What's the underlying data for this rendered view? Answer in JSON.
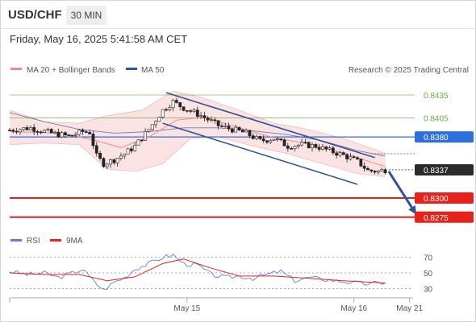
{
  "header": {
    "symbol": "USD/CHF",
    "timeframe": "30 MIN",
    "datetime": "Friday, May 16, 2025 5:41:58 AM CET"
  },
  "colors": {
    "green_level": "#69a94a",
    "blue_level": "#2e6fe0",
    "red_level": "#e8211b",
    "price_box": "#2b2b2b",
    "ma20": "#f08a8a",
    "bollinger_fill": "#fbdada",
    "ma50": "#2f5597",
    "channel": "#2f5597",
    "arrow": "#2f5597",
    "rsi": "#5b7fe0",
    "rsi_ma": "#e8211b"
  },
  "chart_data": [
    {
      "type": "candlestick",
      "title": "",
      "legend": [
        {
          "name": "MA 20 + Bollinger Bands",
          "color": "#f08a8a"
        },
        {
          "name": "MA 50",
          "color": "#2f5597"
        }
      ],
      "legend_placement": "top-left",
      "credit": "Research © 2025 Trading Central",
      "y_range": [
        0.826,
        0.8455
      ],
      "x_labels": [
        {
          "label": "May 15",
          "index": 51
        },
        {
          "label": "May 16",
          "index": 99
        },
        {
          "label": "May 21",
          "index": 115
        }
      ],
      "x_count": 117,
      "levels": [
        {
          "value": 0.8435,
          "label": "0.8435",
          "style": "green",
          "boxed": false
        },
        {
          "value": 0.8405,
          "label": "0.8405",
          "style": "green",
          "boxed": false
        },
        {
          "value": 0.838,
          "label": "0.8380",
          "style": "blue",
          "boxed": true
        },
        {
          "value": 0.8337,
          "label": "0.8337",
          "style": "current",
          "boxed": true
        },
        {
          "value": 0.83,
          "label": "0.8300",
          "style": "red",
          "boxed": true
        },
        {
          "value": 0.8275,
          "label": "0.8275",
          "style": "red",
          "boxed": true
        }
      ],
      "keypoints": [
        {
          "i": 0,
          "y": 0.8389
        },
        {
          "i": 6,
          "y": 0.8392
        },
        {
          "i": 12,
          "y": 0.8385
        },
        {
          "i": 17,
          "y": 0.8381
        },
        {
          "i": 21,
          "y": 0.8387
        },
        {
          "i": 23,
          "y": 0.8386
        },
        {
          "i": 25,
          "y": 0.8355
        },
        {
          "i": 27,
          "y": 0.8345
        },
        {
          "i": 30,
          "y": 0.835
        },
        {
          "i": 33,
          "y": 0.8358
        },
        {
          "i": 36,
          "y": 0.8368
        },
        {
          "i": 40,
          "y": 0.839
        },
        {
          "i": 44,
          "y": 0.8415
        },
        {
          "i": 47,
          "y": 0.8426
        },
        {
          "i": 50,
          "y": 0.8418
        },
        {
          "i": 55,
          "y": 0.8408
        },
        {
          "i": 60,
          "y": 0.8395
        },
        {
          "i": 64,
          "y": 0.839
        },
        {
          "i": 68,
          "y": 0.8385
        },
        {
          "i": 72,
          "y": 0.8375
        },
        {
          "i": 76,
          "y": 0.8378
        },
        {
          "i": 80,
          "y": 0.8368
        },
        {
          "i": 84,
          "y": 0.837
        },
        {
          "i": 88,
          "y": 0.8368
        },
        {
          "i": 92,
          "y": 0.8362
        },
        {
          "i": 96,
          "y": 0.8356
        },
        {
          "i": 100,
          "y": 0.8348
        },
        {
          "i": 103,
          "y": 0.8336
        },
        {
          "i": 106,
          "y": 0.8335
        },
        {
          "i": 108,
          "y": 0.8337
        }
      ],
      "channel": {
        "upper": [
          {
            "i": 45,
            "y": 0.8438
          },
          {
            "i": 105,
            "y": 0.8353
          }
        ],
        "lower": [
          {
            "i": 44,
            "y": 0.8398
          },
          {
            "i": 100,
            "y": 0.8318
          }
        ]
      },
      "ma20": [
        {
          "i": 0,
          "y": 0.8387
        },
        {
          "i": 15,
          "y": 0.8385
        },
        {
          "i": 25,
          "y": 0.8375
        },
        {
          "i": 32,
          "y": 0.8366
        },
        {
          "i": 40,
          "y": 0.838
        },
        {
          "i": 48,
          "y": 0.8402
        },
        {
          "i": 56,
          "y": 0.8406
        },
        {
          "i": 66,
          "y": 0.8392
        },
        {
          "i": 76,
          "y": 0.8379
        },
        {
          "i": 86,
          "y": 0.8371
        },
        {
          "i": 96,
          "y": 0.8359
        },
        {
          "i": 106,
          "y": 0.8344
        },
        {
          "i": 108,
          "y": 0.8342
        }
      ],
      "bollinger_upper": [
        {
          "i": 0,
          "y": 0.8415
        },
        {
          "i": 10,
          "y": 0.84
        },
        {
          "i": 20,
          "y": 0.8398
        },
        {
          "i": 28,
          "y": 0.8408
        },
        {
          "i": 38,
          "y": 0.8415
        },
        {
          "i": 47,
          "y": 0.844
        },
        {
          "i": 55,
          "y": 0.8432
        },
        {
          "i": 66,
          "y": 0.8415
        },
        {
          "i": 76,
          "y": 0.8398
        },
        {
          "i": 86,
          "y": 0.839
        },
        {
          "i": 96,
          "y": 0.8378
        },
        {
          "i": 106,
          "y": 0.8362
        },
        {
          "i": 108,
          "y": 0.8358
        }
      ],
      "bollinger_lower": [
        {
          "i": 0,
          "y": 0.837
        },
        {
          "i": 10,
          "y": 0.8372
        },
        {
          "i": 20,
          "y": 0.837
        },
        {
          "i": 28,
          "y": 0.8338
        },
        {
          "i": 36,
          "y": 0.8335
        },
        {
          "i": 44,
          "y": 0.8345
        },
        {
          "i": 52,
          "y": 0.8378
        },
        {
          "i": 60,
          "y": 0.838
        },
        {
          "i": 70,
          "y": 0.8368
        },
        {
          "i": 80,
          "y": 0.8358
        },
        {
          "i": 90,
          "y": 0.8345
        },
        {
          "i": 100,
          "y": 0.8332
        },
        {
          "i": 108,
          "y": 0.8328
        }
      ],
      "ma50": [
        {
          "i": 0,
          "y": 0.8412
        },
        {
          "i": 10,
          "y": 0.84
        },
        {
          "i": 20,
          "y": 0.839
        },
        {
          "i": 30,
          "y": 0.8385
        },
        {
          "i": 40,
          "y": 0.8387
        },
        {
          "i": 50,
          "y": 0.8392
        },
        {
          "i": 60,
          "y": 0.8392
        },
        {
          "i": 70,
          "y": 0.8388
        },
        {
          "i": 80,
          "y": 0.8383
        },
        {
          "i": 90,
          "y": 0.8375
        },
        {
          "i": 100,
          "y": 0.8362
        },
        {
          "i": 108,
          "y": 0.8355
        }
      ],
      "arrow": {
        "from": {
          "i": 109,
          "y": 0.8335
        },
        "to": {
          "i": 117,
          "y": 0.8278
        }
      }
    },
    {
      "type": "line",
      "title": "",
      "legend": [
        {
          "name": "RSI",
          "color": "#5b7fe0"
        },
        {
          "name": "9MA",
          "color": "#e8211b"
        }
      ],
      "y_ticks": [
        70,
        50,
        30
      ],
      "y_range": [
        20,
        78
      ],
      "rsi": [
        {
          "i": 0,
          "y": 52
        },
        {
          "i": 5,
          "y": 48
        },
        {
          "i": 10,
          "y": 50
        },
        {
          "i": 14,
          "y": 44
        },
        {
          "i": 18,
          "y": 50
        },
        {
          "i": 21,
          "y": 55
        },
        {
          "i": 24,
          "y": 40
        },
        {
          "i": 27,
          "y": 28
        },
        {
          "i": 30,
          "y": 38
        },
        {
          "i": 33,
          "y": 44
        },
        {
          "i": 36,
          "y": 55
        },
        {
          "i": 40,
          "y": 62
        },
        {
          "i": 44,
          "y": 70
        },
        {
          "i": 47,
          "y": 73
        },
        {
          "i": 50,
          "y": 62
        },
        {
          "i": 54,
          "y": 60
        },
        {
          "i": 58,
          "y": 48
        },
        {
          "i": 62,
          "y": 44
        },
        {
          "i": 66,
          "y": 46
        },
        {
          "i": 70,
          "y": 43
        },
        {
          "i": 74,
          "y": 48
        },
        {
          "i": 78,
          "y": 52
        },
        {
          "i": 82,
          "y": 40
        },
        {
          "i": 86,
          "y": 44
        },
        {
          "i": 90,
          "y": 42
        },
        {
          "i": 94,
          "y": 40
        },
        {
          "i": 98,
          "y": 38
        },
        {
          "i": 102,
          "y": 36
        },
        {
          "i": 106,
          "y": 37
        },
        {
          "i": 108,
          "y": 38
        }
      ],
      "rsi_ma": [
        {
          "i": 0,
          "y": 50
        },
        {
          "i": 10,
          "y": 48
        },
        {
          "i": 20,
          "y": 48
        },
        {
          "i": 28,
          "y": 40
        },
        {
          "i": 36,
          "y": 45
        },
        {
          "i": 44,
          "y": 62
        },
        {
          "i": 50,
          "y": 68
        },
        {
          "i": 58,
          "y": 56
        },
        {
          "i": 66,
          "y": 46
        },
        {
          "i": 76,
          "y": 46
        },
        {
          "i": 86,
          "y": 43
        },
        {
          "i": 96,
          "y": 40
        },
        {
          "i": 104,
          "y": 38
        },
        {
          "i": 108,
          "y": 37
        }
      ]
    }
  ]
}
